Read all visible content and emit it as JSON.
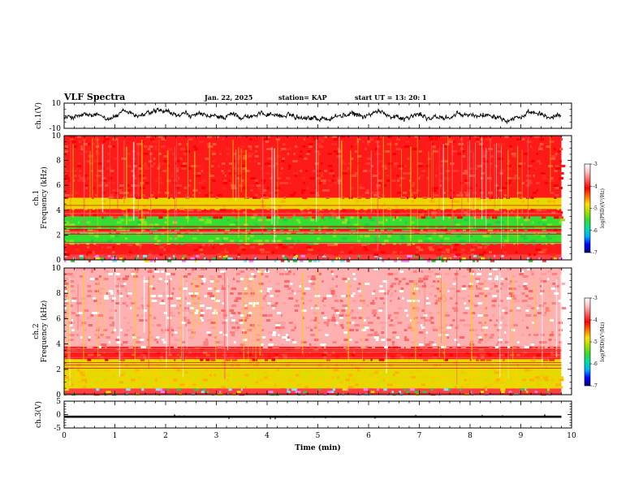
{
  "header": {
    "title": "VLF Spectra",
    "date": "Jan. 22, 2025",
    "station": "station= KAP",
    "start_time": "start UT =  13: 20: 1"
  },
  "colors": {
    "spectrogram_background": "#ff2a1f",
    "low_band_green": "#33dd33",
    "mid_band_yellow": "#e8d800",
    "ch2_upper_pink": "#ff9aa0",
    "waveform": "#000000"
  },
  "colorbar_stops": [
    "#000080",
    "#0000ff",
    "#00b0ff",
    "#00e0a0",
    "#33dd33",
    "#a0e000",
    "#ffe000",
    "#ff7000",
    "#ff0000",
    "#ff6060",
    "#ffc0c0",
    "#ffffff"
  ],
  "chart_data": [
    {
      "type": "line",
      "panel": "ch1_waveform",
      "ylabel": "ch.1(V)",
      "ylim": [
        -10,
        10
      ],
      "y_ticks": [
        "10",
        "-10"
      ],
      "xlim": [
        0,
        10
      ],
      "description_values": "noisy waveform roughly between -4 and 4 V over 0-9.8 min",
      "x_end": 9.8
    },
    {
      "type": "heatmap",
      "panel": "ch1_spectrogram",
      "ylabel_lines": [
        "ch.1",
        "Frequency (kHz)"
      ],
      "ylim": [
        0,
        10
      ],
      "y_ticks": [
        "0",
        "2",
        "4",
        "6",
        "8",
        "10"
      ],
      "xlim": [
        0,
        10
      ],
      "x_end": 9.8,
      "colorbar": {
        "label": "log(PSD)(V²/Hz)",
        "range": [
          -7,
          -3
        ],
        "ticks": [
          "-3",
          "-4",
          "-5",
          "-6",
          "-7"
        ]
      },
      "bands_khz": [
        {
          "from": 0,
          "to": 0.4,
          "level": "mixed"
        },
        {
          "from": 0.4,
          "to": 1.3,
          "level": "red"
        },
        {
          "from": 1.3,
          "to": 2.2,
          "level": "green"
        },
        {
          "from": 2.2,
          "to": 2.5,
          "level": "red"
        },
        {
          "from": 2.5,
          "to": 3.5,
          "level": "green"
        },
        {
          "from": 3.5,
          "to": 4.1,
          "level": "red"
        },
        {
          "from": 4.1,
          "to": 5.0,
          "level": "yellow"
        },
        {
          "from": 5.0,
          "to": 10,
          "level": "red"
        }
      ]
    },
    {
      "type": "heatmap",
      "panel": "ch2_spectrogram",
      "ylabel_lines": [
        "ch.2",
        "Frequency (kHz)"
      ],
      "ylim": [
        0,
        10
      ],
      "y_ticks": [
        "0",
        "2",
        "4",
        "6",
        "8",
        "10"
      ],
      "xlim": [
        0,
        10
      ],
      "x_end": 9.8,
      "colorbar": {
        "label": "log(PSD)(V²/Hz)",
        "range": [
          -7,
          -3
        ],
        "ticks": [
          "-3",
          "-4",
          "-5",
          "-6",
          "-7"
        ]
      },
      "bands_khz": [
        {
          "from": 0,
          "to": 0.5,
          "level": "mixed"
        },
        {
          "from": 0.5,
          "to": 2.8,
          "level": "yellow"
        },
        {
          "from": 2.8,
          "to": 3.8,
          "level": "red"
        },
        {
          "from": 3.8,
          "to": 10,
          "level": "pink"
        }
      ]
    },
    {
      "type": "line",
      "panel": "ch3_waveform",
      "ylabel": "ch.3(V)",
      "ylim": [
        -5,
        5
      ],
      "y_ticks": [
        "5",
        "0",
        "-5"
      ],
      "xlim": [
        0,
        10
      ],
      "x_end": 9.8,
      "level": -0.8,
      "amplitude": 0.4,
      "xlabel": "Time (min)",
      "x_ticks": [
        "0",
        "1",
        "2",
        "3",
        "4",
        "5",
        "6",
        "7",
        "8",
        "9",
        "10"
      ]
    }
  ]
}
